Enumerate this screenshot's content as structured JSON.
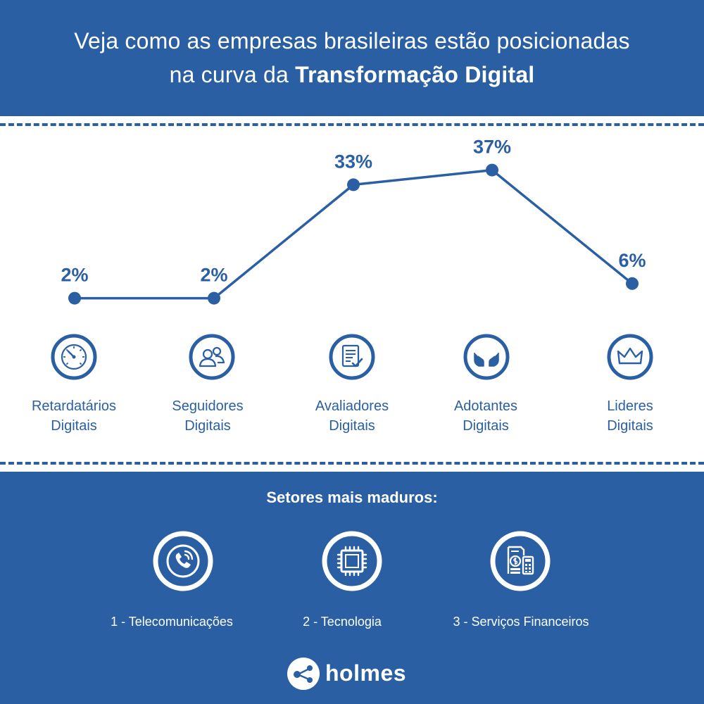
{
  "header": {
    "title_line1": "Veja como as empresas brasileiras estão posicionadas",
    "title_line2_prefix": "na curva da ",
    "title_line2_bold": "Transformação Digital"
  },
  "chart_data": {
    "type": "line",
    "categories": [
      "Retardatários Digitais",
      "Seguidores Digitais",
      "Avaliadores Digitais",
      "Adotantes Digitais",
      "Lideres Digitais"
    ],
    "values": [
      2,
      2,
      33,
      37,
      6
    ],
    "value_labels": [
      "2%",
      "2%",
      "33%",
      "37%",
      "6%"
    ],
    "color": "#2a5fa3"
  },
  "categories": [
    {
      "line1": "Retardatários",
      "line2": "Digitais",
      "icon": "speedometer-icon"
    },
    {
      "line1": "Seguidores",
      "line2": "Digitais",
      "icon": "users-icon"
    },
    {
      "line1": "Avaliadores",
      "line2": "Digitais",
      "icon": "checklist-icon"
    },
    {
      "line1": "Adotantes",
      "line2": "Digitais",
      "icon": "hands-icon"
    },
    {
      "line1": "Lideres",
      "line2": "Digitais",
      "icon": "crown-icon"
    }
  ],
  "sectors": {
    "title": "Setores mais maduros:",
    "items": [
      {
        "label": "1 - Telecomunicações",
        "icon": "phone-icon"
      },
      {
        "label": "2 - Tecnologia",
        "icon": "chip-icon"
      },
      {
        "label": "3 - Serviços Financeiros",
        "icon": "finance-icon"
      }
    ]
  },
  "logo": {
    "text": "holmes"
  },
  "colors": {
    "brand": "#2a5fa3",
    "background": "#ffffff"
  }
}
